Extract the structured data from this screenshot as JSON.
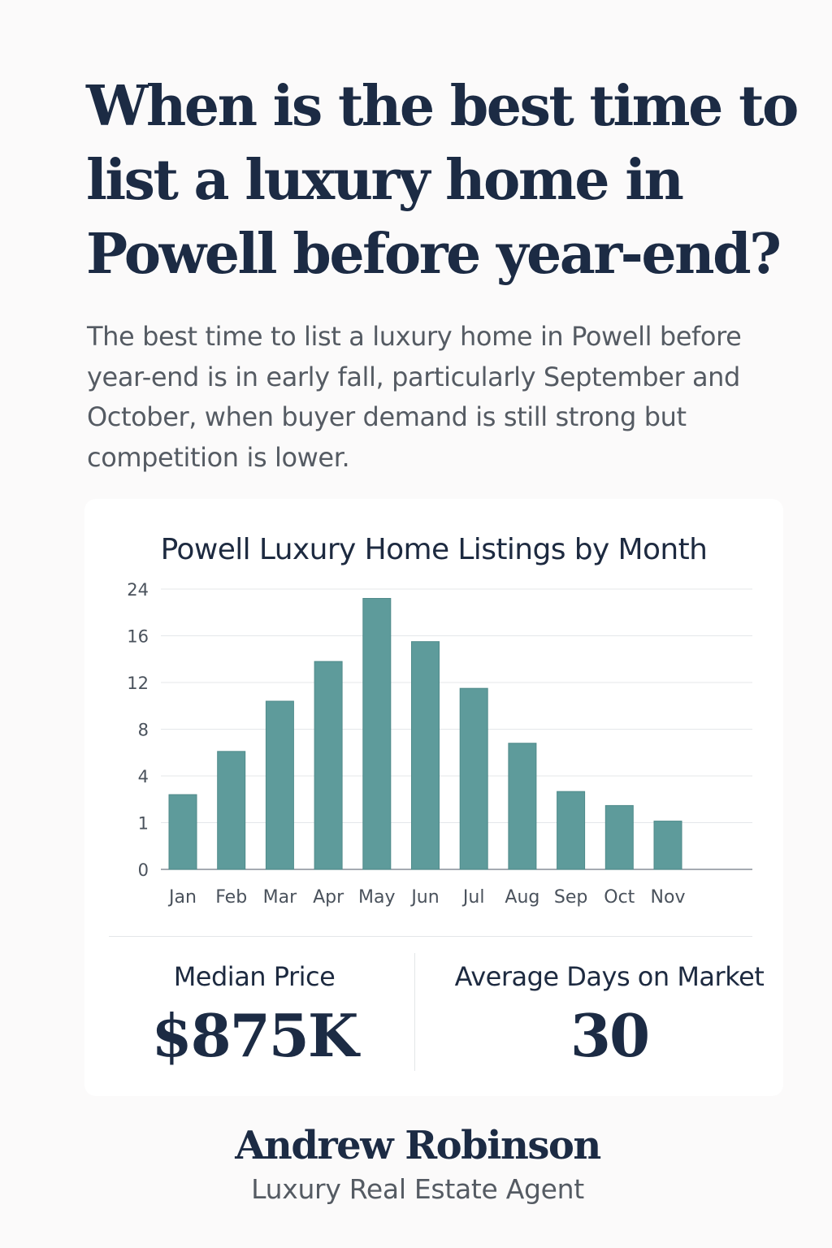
{
  "headline": "When is the best time to list a luxury home in Powell before year-end?",
  "intro": "The best time to list a luxury home in Powell before year-end is in early fall, particularly September and October, when buyer demand is still strong but competition is lower.",
  "chart_data": {
    "type": "bar",
    "title": "Powell Luxury Home Listings by Month",
    "xlabel": "",
    "ylabel": "",
    "categories": [
      "Jan",
      "Feb",
      "Mar",
      "Apr",
      "May",
      "Jun",
      "Jul",
      "Aug",
      "Sep",
      "Oct",
      "Nov"
    ],
    "y_ticks": [
      "0",
      "1",
      "4",
      "8",
      "12",
      "16",
      "24"
    ],
    "values": [
      2.8,
      6.1,
      10.4,
      13.8,
      22.4,
      15.5,
      11.5,
      6.8,
      3.0,
      2.1,
      1.1
    ],
    "grid": true,
    "bar_color": "#5e9b9b"
  },
  "stats": {
    "median_price_label": "Median Price",
    "median_price_value": "$875K",
    "days_label": "Average Days on Market",
    "days_value": "30"
  },
  "agent": {
    "name": "Andrew Robinson",
    "role": "Luxury Real Estate Agent"
  }
}
